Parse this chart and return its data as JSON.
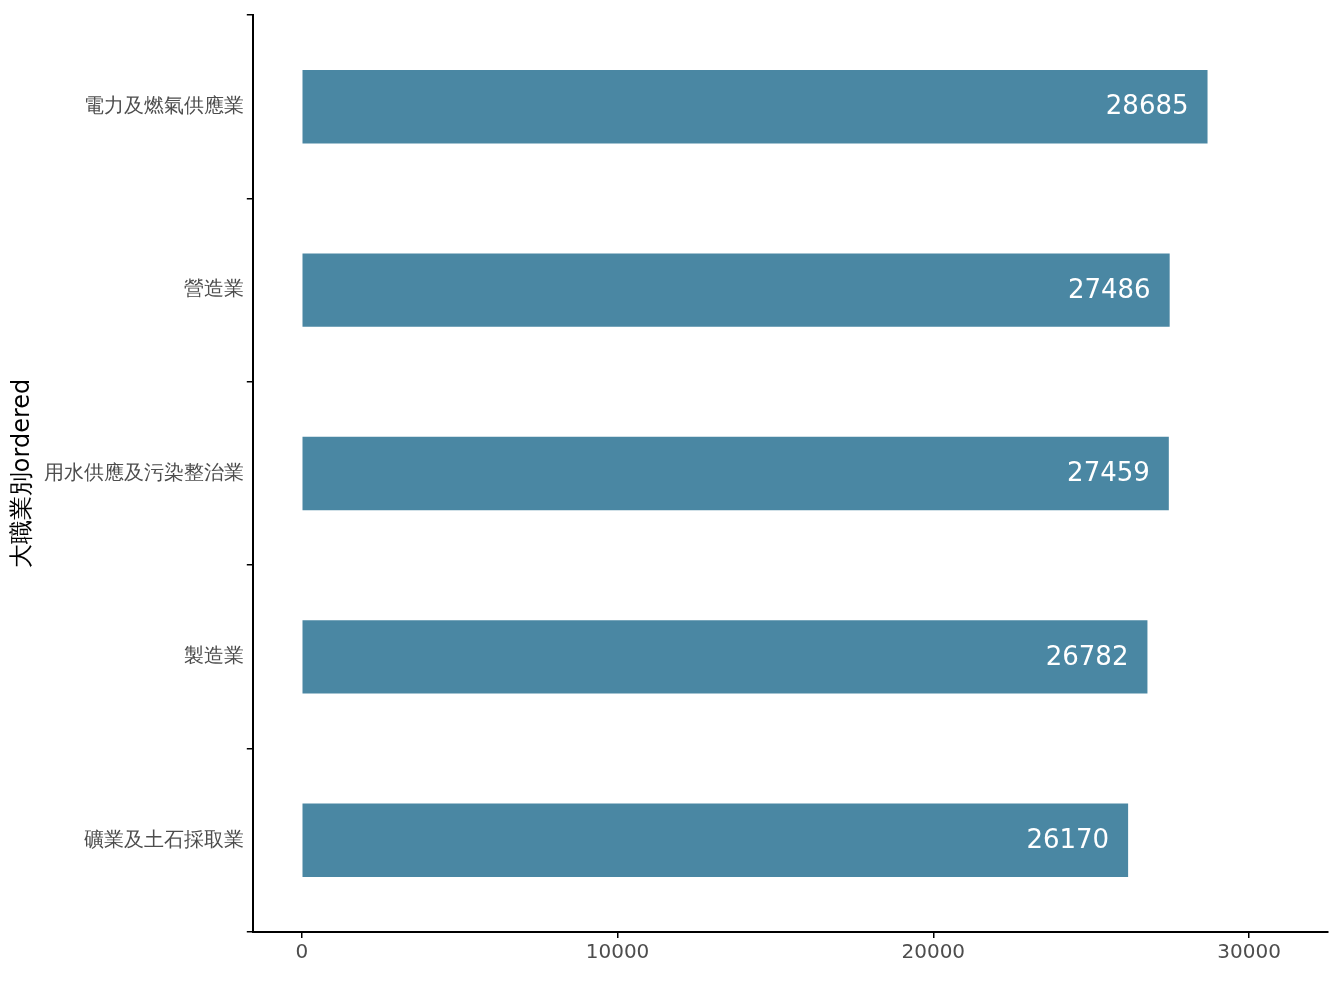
{
  "chart_data": {
    "type": "bar",
    "orientation": "horizontal",
    "ylabel": "大職業別ordered",
    "categories": [
      "電力及燃氣供應業",
      "營造業",
      "用水供應及污染整治業",
      "製造業",
      "礦業及土石採取業"
    ],
    "values": [
      28685,
      27486,
      27459,
      26782,
      26170
    ],
    "color": "#4a87a3",
    "xlim": [
      -1550,
      32500
    ],
    "xticks": [
      0,
      10000,
      20000,
      30000
    ],
    "grid": false,
    "legend": false,
    "data_labels": true
  }
}
